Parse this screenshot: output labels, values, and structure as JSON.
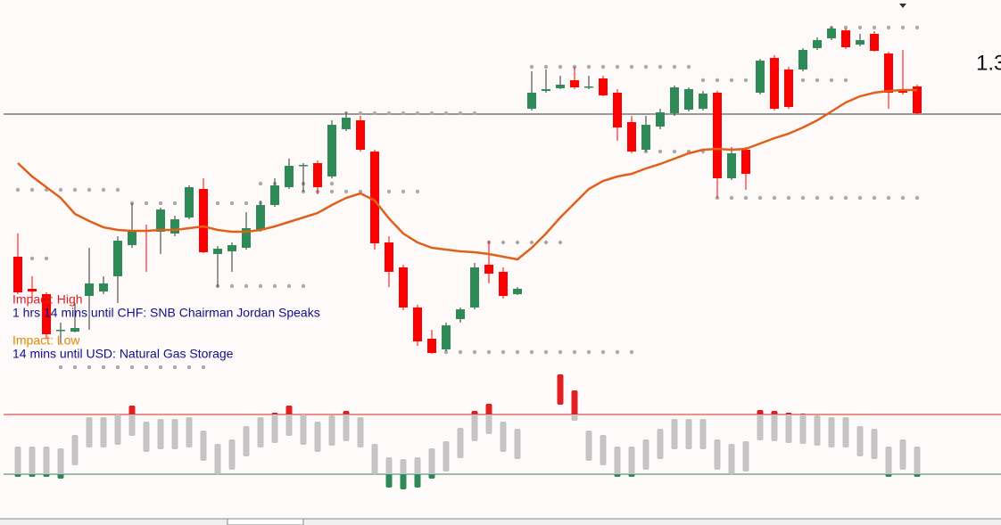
{
  "chart_data": {
    "type": "candlestick",
    "ylim": [
      0,
      430
    ],
    "price_label": "1.3",
    "price_line": 302,
    "up_color": "#2e8b57",
    "down_color": "#ff0000",
    "open": [
      142,
      106,
      100,
      60,
      58,
      98,
      103,
      120,
      155,
      172,
      170,
      168,
      186,
      218,
      145,
      148,
      152,
      172,
      200,
      220,
      245,
      247,
      232,
      285,
      295,
      260,
      158,
      130,
      85,
      50,
      38,
      72,
      85,
      133,
      125,
      100,
      308,
      328,
      331,
      340,
      333,
      342,
      326,
      293,
      262,
      288,
      303,
      307,
      308,
      326,
      230,
      262,
      326,
      365,
      352,
      352,
      376,
      387,
      396,
      380,
      392,
      370,
      329,
      333
    ],
    "high": [
      168,
      120,
      102,
      68,
      90,
      152,
      120,
      165,
      202,
      178,
      197,
      188,
      222,
      230,
      154,
      158,
      192,
      205,
      230,
      252,
      247,
      250,
      295,
      304,
      300,
      262,
      165,
      133,
      88,
      60,
      68,
      85,
      135,
      160,
      130,
      108,
      350,
      352,
      345,
      355,
      345,
      345,
      330,
      300,
      300,
      308,
      334,
      332,
      328,
      328,
      265,
      265,
      364,
      368,
      355,
      376,
      388,
      400,
      398,
      392,
      395,
      372,
      374,
      335
    ],
    "low": [
      100,
      95,
      50,
      45,
      57,
      60,
      100,
      90,
      152,
      125,
      145,
      165,
      184,
      146,
      108,
      125,
      150,
      170,
      198,
      218,
      215,
      212,
      230,
      283,
      260,
      150,
      108,
      82,
      42,
      33,
      36,
      68,
      83,
      112,
      95,
      99,
      306,
      326,
      330,
      330,
      330,
      322,
      272,
      258,
      260,
      285,
      300,
      305,
      306,
      208,
      228,
      217,
      324,
      306,
      308,
      350,
      374,
      385,
      375,
      378,
      372,
      308,
      324,
      302
    ],
    "close": [
      102,
      103,
      55,
      60,
      62,
      112,
      112,
      160,
      170,
      170,
      195,
      184,
      220,
      147,
      151,
      155,
      174,
      200,
      222,
      244,
      245,
      220,
      290,
      298,
      262,
      157,
      125,
      85,
      47,
      34,
      65,
      83,
      130,
      123,
      98,
      106,
      326,
      330,
      335,
      332,
      333,
      323,
      287,
      260,
      290,
      304,
      332,
      330,
      325,
      230,
      258,
      235,
      362,
      308,
      310,
      374,
      385,
      398,
      377,
      385,
      373,
      326,
      326,
      303
    ],
    "moving_average": {
      "color": "#e0601a",
      "values": [
        247,
        232,
        220,
        208,
        190,
        182,
        175,
        172,
        171,
        171,
        172,
        172,
        174,
        176,
        172,
        170,
        170,
        172,
        176,
        181,
        186,
        191,
        200,
        208,
        213,
        205,
        185,
        168,
        158,
        152,
        150,
        148,
        147,
        145,
        142,
        139,
        152,
        168,
        186,
        202,
        218,
        227,
        232,
        235,
        241,
        246,
        252,
        258,
        262,
        263,
        262,
        263,
        269,
        275,
        280,
        287,
        295,
        305,
        315,
        322,
        326,
        328,
        329,
        329
      ]
    },
    "levels": [
      {
        "from": 0,
        "to": 7,
        "value": 217
      },
      {
        "from": 0,
        "to": 2,
        "value": 140
      },
      {
        "from": 3,
        "to": 13,
        "value": 18
      },
      {
        "from": 8,
        "to": 18,
        "value": 202
      },
      {
        "from": 14,
        "to": 20,
        "value": 109
      },
      {
        "from": 17,
        "to": 22,
        "value": 224
      },
      {
        "from": 20,
        "to": 28,
        "value": 215
      },
      {
        "from": 23,
        "to": 32,
        "value": 303
      },
      {
        "from": 33,
        "to": 38,
        "value": 158
      },
      {
        "from": 30,
        "to": 43,
        "value": 35
      },
      {
        "from": 36,
        "to": 47,
        "value": 355
      },
      {
        "from": 44,
        "to": 48,
        "value": 260
      },
      {
        "from": 48,
        "to": 58,
        "value": 340
      },
      {
        "from": 49,
        "to": 63,
        "value": 208
      },
      {
        "from": 57,
        "to": 63,
        "value": 399
      }
    ],
    "oscillator": {
      "ylim": [
        -13,
        97
      ],
      "upper": 67,
      "upper_color": "#e02020",
      "lower": 0,
      "lower_color": "#2e8b57",
      "values": [
        14,
        14,
        14,
        12,
        27,
        47,
        47,
        50,
        60,
        42,
        45,
        45,
        47,
        32,
        17,
        22,
        37,
        47,
        52,
        60,
        50,
        42,
        49,
        54,
        47,
        17,
        2,
        0,
        2,
        12,
        20,
        35,
        54,
        62,
        42,
        34,
        null,
        null,
        95,
        77,
        32,
        27,
        14,
        14,
        22,
        34,
        45,
        45,
        45,
        22,
        17,
        20,
        55,
        54,
        52,
        51,
        49,
        47,
        47,
        37,
        34,
        14,
        22,
        14
      ]
    },
    "news": [
      {
        "impact": "Impact: High",
        "impact_color": "#e02020",
        "event": "1 hrs 14 mins until CHF: SNB Chairman Jordan Speaks"
      },
      {
        "impact": "Impact: Low",
        "impact_color": "#e08a00",
        "event": "14 mins until USD: Natural Gas Storage"
      }
    ]
  }
}
